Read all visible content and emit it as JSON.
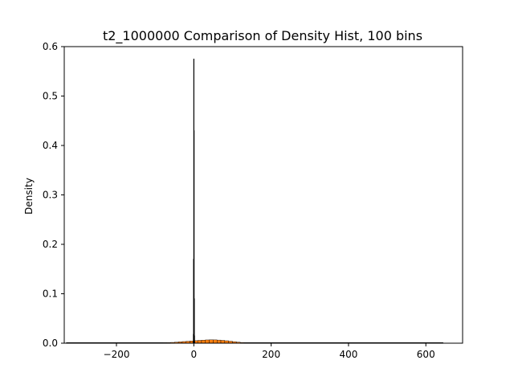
{
  "chart_data": {
    "type": "histogram",
    "title": "t2_1000000 Comparison of Density Hist, 100 bins",
    "xlabel": "",
    "ylabel": "Density",
    "xlim": [
      -335,
      695
    ],
    "ylim": [
      0,
      0.6
    ],
    "x_ticks": [
      -200,
      0,
      200,
      400,
      600
    ],
    "x_tick_labels": [
      "−200",
      "0",
      "200",
      "400",
      "600"
    ],
    "y_ticks": [
      0.0,
      0.1,
      0.2,
      0.3,
      0.4,
      0.5,
      0.6
    ],
    "y_tick_labels": [
      "0.0",
      "0.1",
      "0.2",
      "0.3",
      "0.4",
      "0.5",
      "0.6"
    ],
    "grid": false,
    "legend": "none",
    "colors": {
      "series_narrow": "#000000",
      "series_wide": "#ff7f0e",
      "edge": "#000000"
    },
    "series": [
      {
        "bins": [
          {
            "x0": -2.0,
            "x1": -1.5,
            "density": 0.003
          },
          {
            "x0": -1.5,
            "x1": -1.0,
            "density": 0.018
          },
          {
            "x0": -1.0,
            "x1": -0.5,
            "density": 0.17
          },
          {
            "x0": -0.5,
            "x1": 0.0,
            "density": 0.575
          },
          {
            "x0": 0.0,
            "x1": 0.5,
            "density": 0.43
          },
          {
            "x0": 0.5,
            "x1": 1.0,
            "density": 0.09
          },
          {
            "x0": 1.0,
            "x1": 1.5,
            "density": 0.015
          },
          {
            "x0": 1.5,
            "x1": 2.0,
            "density": 0.003
          }
        ]
      },
      {
        "bins": [
          {
            "x0": -100,
            "x1": -90,
            "density": 0.0004
          },
          {
            "x0": -90,
            "x1": -80,
            "density": 0.0006
          },
          {
            "x0": -80,
            "x1": -70,
            "density": 0.0009
          },
          {
            "x0": -70,
            "x1": -60,
            "density": 0.0012
          },
          {
            "x0": -60,
            "x1": -50,
            "density": 0.0016
          },
          {
            "x0": -50,
            "x1": -40,
            "density": 0.0021
          },
          {
            "x0": -40,
            "x1": -30,
            "density": 0.0027
          },
          {
            "x0": -30,
            "x1": -20,
            "density": 0.0033
          },
          {
            "x0": -20,
            "x1": -10,
            "density": 0.0039
          },
          {
            "x0": -10,
            "x1": 0,
            "density": 0.0045
          },
          {
            "x0": 0,
            "x1": 10,
            "density": 0.0051
          },
          {
            "x0": 10,
            "x1": 20,
            "density": 0.0057
          },
          {
            "x0": 20,
            "x1": 30,
            "density": 0.0062
          },
          {
            "x0": 30,
            "x1": 40,
            "density": 0.0066
          },
          {
            "x0": 40,
            "x1": 50,
            "density": 0.0068
          },
          {
            "x0": 50,
            "x1": 60,
            "density": 0.0067
          },
          {
            "x0": 60,
            "x1": 70,
            "density": 0.0063
          },
          {
            "x0": 70,
            "x1": 80,
            "density": 0.0057
          },
          {
            "x0": 80,
            "x1": 90,
            "density": 0.0049
          },
          {
            "x0": 90,
            "x1": 100,
            "density": 0.004
          },
          {
            "x0": 100,
            "x1": 110,
            "density": 0.0031
          },
          {
            "x0": 110,
            "x1": 120,
            "density": 0.0022
          },
          {
            "x0": 120,
            "x1": 130,
            "density": 0.0014
          },
          {
            "x0": 130,
            "x1": 140,
            "density": 0.0008
          }
        ]
      }
    ],
    "baseline_line": {
      "x0": -330,
      "x1": 645
    }
  }
}
